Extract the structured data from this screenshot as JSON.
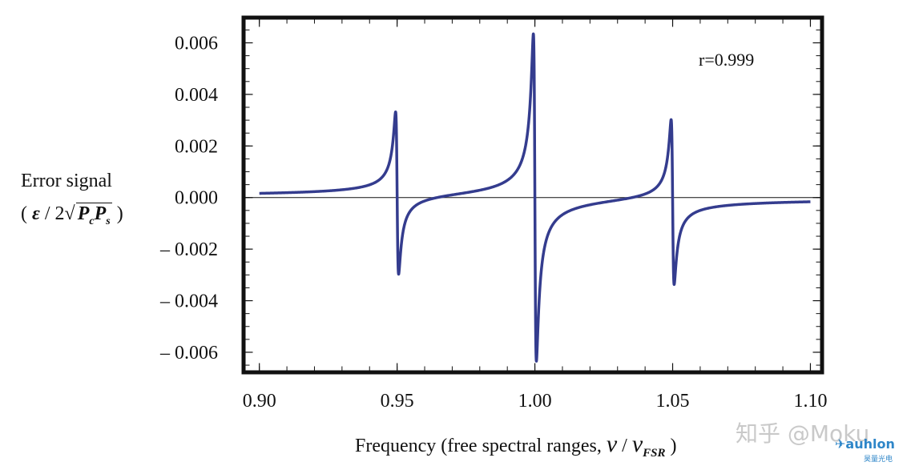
{
  "chart_data": {
    "type": "line",
    "annotation": "r=0.999",
    "ylabel_line1": "Error signal",
    "ylabel_formula": {
      "paren_open": "(",
      "eps": "ε",
      "div": "/",
      "two": "2",
      "p1": "P",
      "sub1": "c",
      "p2": "P",
      "sub2": "s",
      "paren_close": ")"
    },
    "xlabel": {
      "text": "Frequency (free spectral ranges,",
      "nu1": "ν",
      "slash": "/",
      "nu2": "ν",
      "sub": "FSR",
      "close": ")"
    },
    "xlim": [
      0.895,
      1.1035
    ],
    "ylim": [
      -0.0067,
      0.0069
    ],
    "x_ticks": [
      0.9,
      0.95,
      1.0,
      1.05,
      1.1
    ],
    "x_tick_labels": [
      "0.90",
      "0.95",
      "1.00",
      "1.05",
      "1.10"
    ],
    "y_ticks": [
      0.006,
      0.004,
      0.002,
      0.0,
      -0.002,
      -0.004,
      -0.006
    ],
    "y_tick_labels": [
      "0.006",
      "0.004",
      "0.002",
      "0.000",
      "– 0.002",
      "– 0.004",
      "– 0.006"
    ],
    "series": [
      {
        "name": "error signal r=0.999",
        "color": "#343c8e",
        "resonances": [
          {
            "center": 0.95,
            "max": 0.0032,
            "min": -0.0031
          },
          {
            "center": 1.0,
            "max": 0.0064,
            "min": -0.0063
          },
          {
            "center": 1.05,
            "max": 0.0032,
            "min": -0.0032
          }
        ],
        "x_range": [
          0.9,
          1.1
        ]
      }
    ]
  },
  "watermark": "知乎 @Moku",
  "brand": "auhlon",
  "brand_sub": "昊量光电",
  "colors": {
    "line": "#343c8e",
    "frame": "#111111",
    "zero_line": "#111111"
  }
}
